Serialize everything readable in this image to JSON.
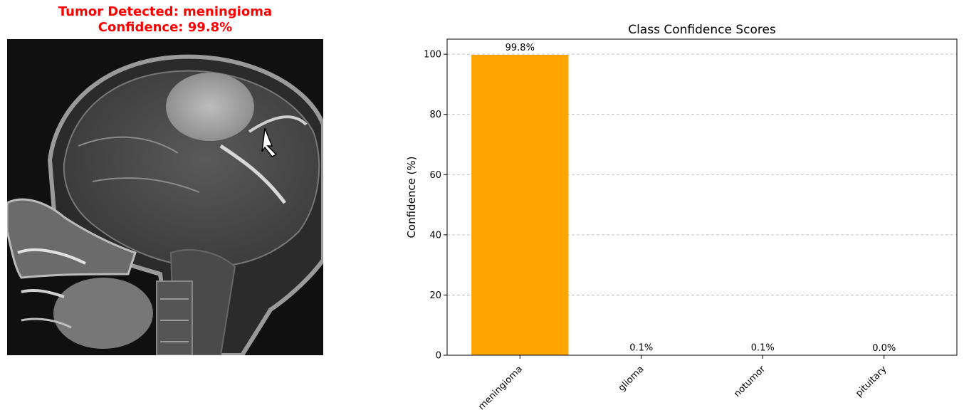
{
  "prediction": {
    "title_line1": "Tumor Detected: meningioma",
    "title_line2": "Confidence: 99.8%",
    "title_color": "#ff0000"
  },
  "chart_data": {
    "type": "bar",
    "title": "Class Confidence Scores",
    "xlabel": "",
    "ylabel": "Confidence (%)",
    "categories": [
      "meningioma",
      "glioma",
      "notumor",
      "pituitary"
    ],
    "values": [
      99.8,
      0.1,
      0.1,
      0.0
    ],
    "data_labels": [
      "99.8%",
      "0.1%",
      "0.1%",
      "0.0%"
    ],
    "colors": [
      "#ffa500",
      "#1f77b4",
      "#1f77b4",
      "#1f77b4"
    ],
    "ylim": [
      0,
      105
    ],
    "yticks": [
      0,
      20,
      40,
      60,
      80,
      100
    ],
    "grid": "y-dashed"
  }
}
